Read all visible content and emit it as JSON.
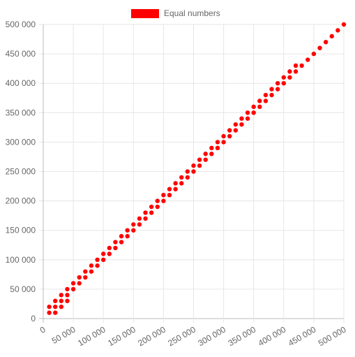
{
  "chart_data": {
    "type": "scatter",
    "title": "",
    "xlabel": "",
    "ylabel": "",
    "xlim": [
      0,
      500000
    ],
    "ylim": [
      0,
      500000
    ],
    "grid": true,
    "legend_position": "top-center",
    "x_ticks": [
      "0",
      "50 000",
      "100 000",
      "150 000",
      "200 000",
      "250 000",
      "300 000",
      "350 000",
      "400 000",
      "450 000",
      "500 000"
    ],
    "y_ticks": [
      "0",
      "50 000",
      "100 000",
      "150 000",
      "200 000",
      "250 000",
      "300 000",
      "350 000",
      "400 000",
      "450 000",
      "500 000"
    ],
    "series": [
      {
        "name": "Equal numbers",
        "color": "#ff0000",
        "points": [
          [
            10000,
            10000
          ],
          [
            10000,
            20000
          ],
          [
            20000,
            10000
          ],
          [
            20000,
            20000
          ],
          [
            20000,
            30000
          ],
          [
            30000,
            20000
          ],
          [
            30000,
            30000
          ],
          [
            30000,
            40000
          ],
          [
            40000,
            30000
          ],
          [
            40000,
            40000
          ],
          [
            40000,
            50000
          ],
          [
            50000,
            50000
          ],
          [
            50000,
            60000
          ],
          [
            60000,
            60000
          ],
          [
            60000,
            70000
          ],
          [
            70000,
            70000
          ],
          [
            70000,
            80000
          ],
          [
            80000,
            80000
          ],
          [
            80000,
            90000
          ],
          [
            90000,
            90000
          ],
          [
            90000,
            100000
          ],
          [
            100000,
            100000
          ],
          [
            100000,
            110000
          ],
          [
            110000,
            110000
          ],
          [
            110000,
            120000
          ],
          [
            120000,
            120000
          ],
          [
            120000,
            130000
          ],
          [
            130000,
            130000
          ],
          [
            130000,
            140000
          ],
          [
            140000,
            140000
          ],
          [
            140000,
            150000
          ],
          [
            150000,
            150000
          ],
          [
            150000,
            160000
          ],
          [
            160000,
            160000
          ],
          [
            160000,
            170000
          ],
          [
            170000,
            170000
          ],
          [
            170000,
            180000
          ],
          [
            180000,
            180000
          ],
          [
            180000,
            190000
          ],
          [
            190000,
            190000
          ],
          [
            190000,
            200000
          ],
          [
            200000,
            200000
          ],
          [
            200000,
            210000
          ],
          [
            210000,
            210000
          ],
          [
            210000,
            220000
          ],
          [
            220000,
            220000
          ],
          [
            220000,
            230000
          ],
          [
            230000,
            230000
          ],
          [
            230000,
            240000
          ],
          [
            240000,
            240000
          ],
          [
            240000,
            250000
          ],
          [
            250000,
            250000
          ],
          [
            250000,
            260000
          ],
          [
            260000,
            260000
          ],
          [
            260000,
            270000
          ],
          [
            270000,
            270000
          ],
          [
            270000,
            280000
          ],
          [
            280000,
            280000
          ],
          [
            280000,
            290000
          ],
          [
            290000,
            290000
          ],
          [
            290000,
            300000
          ],
          [
            300000,
            300000
          ],
          [
            300000,
            310000
          ],
          [
            310000,
            310000
          ],
          [
            310000,
            320000
          ],
          [
            320000,
            320000
          ],
          [
            320000,
            330000
          ],
          [
            330000,
            330000
          ],
          [
            330000,
            340000
          ],
          [
            340000,
            340000
          ],
          [
            340000,
            350000
          ],
          [
            350000,
            350000
          ],
          [
            350000,
            360000
          ],
          [
            360000,
            360000
          ],
          [
            360000,
            370000
          ],
          [
            370000,
            370000
          ],
          [
            370000,
            380000
          ],
          [
            380000,
            380000
          ],
          [
            380000,
            390000
          ],
          [
            390000,
            390000
          ],
          [
            390000,
            400000
          ],
          [
            400000,
            400000
          ],
          [
            400000,
            410000
          ],
          [
            410000,
            410000
          ],
          [
            410000,
            420000
          ],
          [
            420000,
            420000
          ],
          [
            420000,
            430000
          ],
          [
            430000,
            430000
          ],
          [
            440000,
            440000
          ],
          [
            450000,
            450000
          ],
          [
            460000,
            460000
          ],
          [
            470000,
            470000
          ],
          [
            480000,
            480000
          ],
          [
            490000,
            490000
          ],
          [
            500000,
            500000
          ]
        ]
      }
    ]
  }
}
